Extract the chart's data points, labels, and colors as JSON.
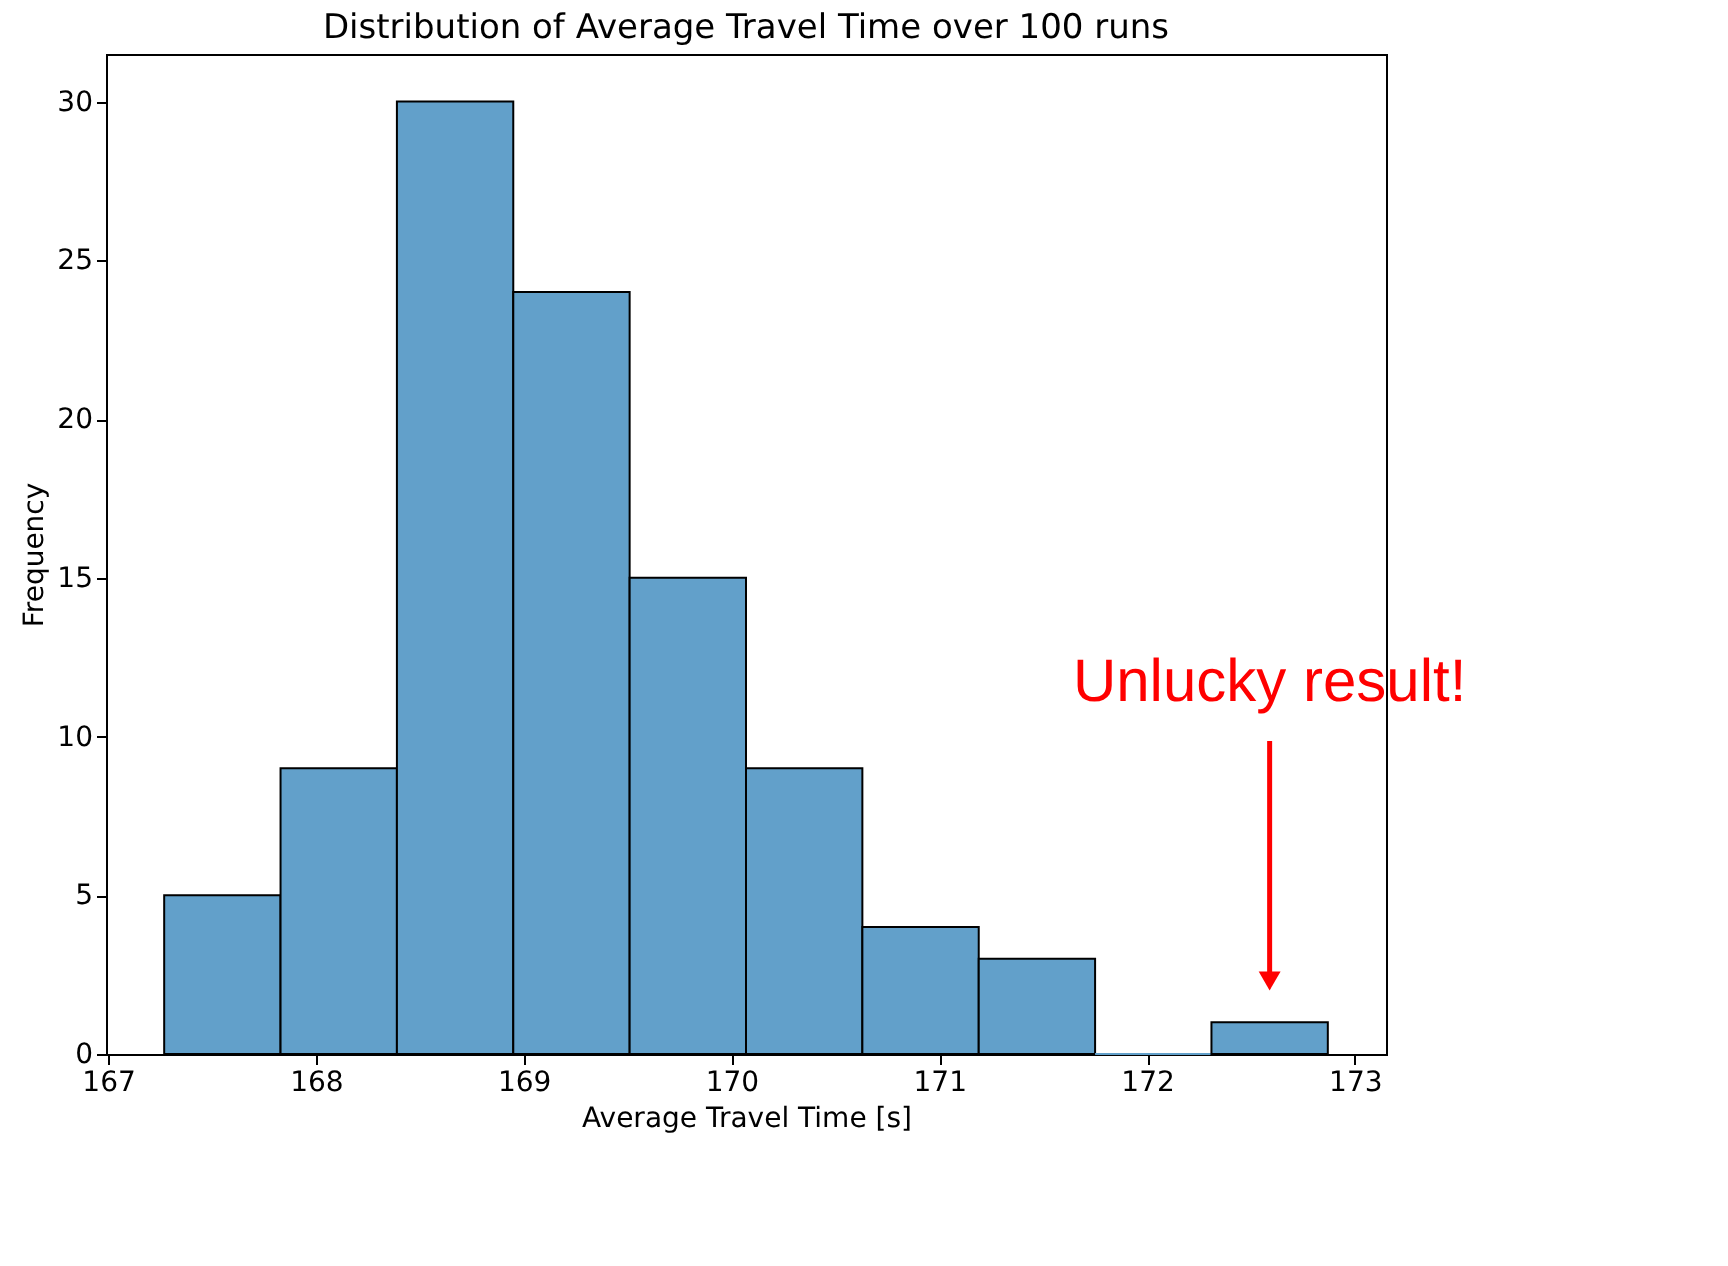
{
  "chart_data": {
    "type": "histogram",
    "title": "Distribution of Average Travel Time over 100 runs",
    "xlabel": "Average Travel Time  [s]",
    "ylabel": "Frequency",
    "bins": [
      167.27,
      167.83,
      168.39,
      168.95,
      169.51,
      170.07,
      170.63,
      171.19,
      171.75,
      172.31,
      172.87
    ],
    "values": [
      5,
      9,
      30,
      24,
      15,
      9,
      4,
      3,
      0,
      1
    ],
    "color": "#62a0ca",
    "xlim": [
      166.99,
      173.15
    ],
    "xticks": [
      167,
      168,
      169,
      170,
      171,
      172,
      173
    ],
    "ylim": [
      0,
      31.5
    ],
    "yticks": [
      0,
      5,
      10,
      15,
      20,
      25,
      30
    ],
    "grid": false,
    "annotations": [
      {
        "text": "Unlucky result!",
        "x": 172.59,
        "y": 2.3
      }
    ]
  }
}
